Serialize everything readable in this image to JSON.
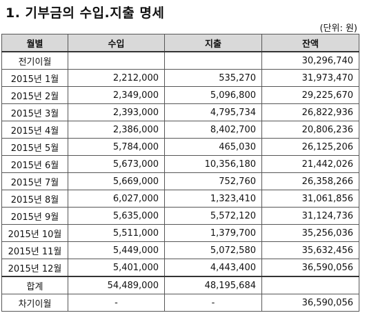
{
  "title": "1. 기부금의 수입.지출 명세",
  "unit": "(단위: 원)",
  "headers": {
    "month": "월별",
    "income": "수입",
    "expense": "지출",
    "balance": "잔액"
  },
  "carried_in": {
    "label": "전기이월",
    "income": "",
    "expense": "",
    "balance": "30,296,740"
  },
  "rows": [
    {
      "month": "2015년 1월",
      "income": "2,212,000",
      "expense": "535,270",
      "balance": "31,973,470"
    },
    {
      "month": "2015년 2월",
      "income": "2,349,000",
      "expense": "5,096,800",
      "balance": "29,225,670"
    },
    {
      "month": "2015년 3월",
      "income": "2,393,000",
      "expense": "4,795,734",
      "balance": "26,822,936"
    },
    {
      "month": "2015년 4월",
      "income": "2,386,000",
      "expense": "8,402,700",
      "balance": "20,806,236"
    },
    {
      "month": "2015년 5월",
      "income": "5,784,000",
      "expense": "465,030",
      "balance": "26,125,206"
    },
    {
      "month": "2015년 6월",
      "income": "5,673,000",
      "expense": "10,356,180",
      "balance": "21,442,026"
    },
    {
      "month": "2015년 7월",
      "income": "5,669,000",
      "expense": "752,760",
      "balance": "26,358,266"
    },
    {
      "month": "2015년 8월",
      "income": "6,027,000",
      "expense": "1,323,410",
      "balance": "31,061,856"
    },
    {
      "month": "2015년 9월",
      "income": "5,635,000",
      "expense": "5,572,120",
      "balance": "31,124,736"
    },
    {
      "month": "2015년 10월",
      "income": "5,511,000",
      "expense": "1,379,700",
      "balance": "35,256,036"
    },
    {
      "month": "2015년 11월",
      "income": "5,449,000",
      "expense": "5,072,580",
      "balance": "35,632,456"
    },
    {
      "month": "2015년 12월",
      "income": "5,401,000",
      "expense": "4,443,400",
      "balance": "36,590,056"
    }
  ],
  "total": {
    "label": "합계",
    "income": "54,489,000",
    "expense": "48,195,684",
    "balance": ""
  },
  "carried_out": {
    "label": "차기이월",
    "income": "-",
    "expense": "-",
    "balance": "36,590,056"
  }
}
